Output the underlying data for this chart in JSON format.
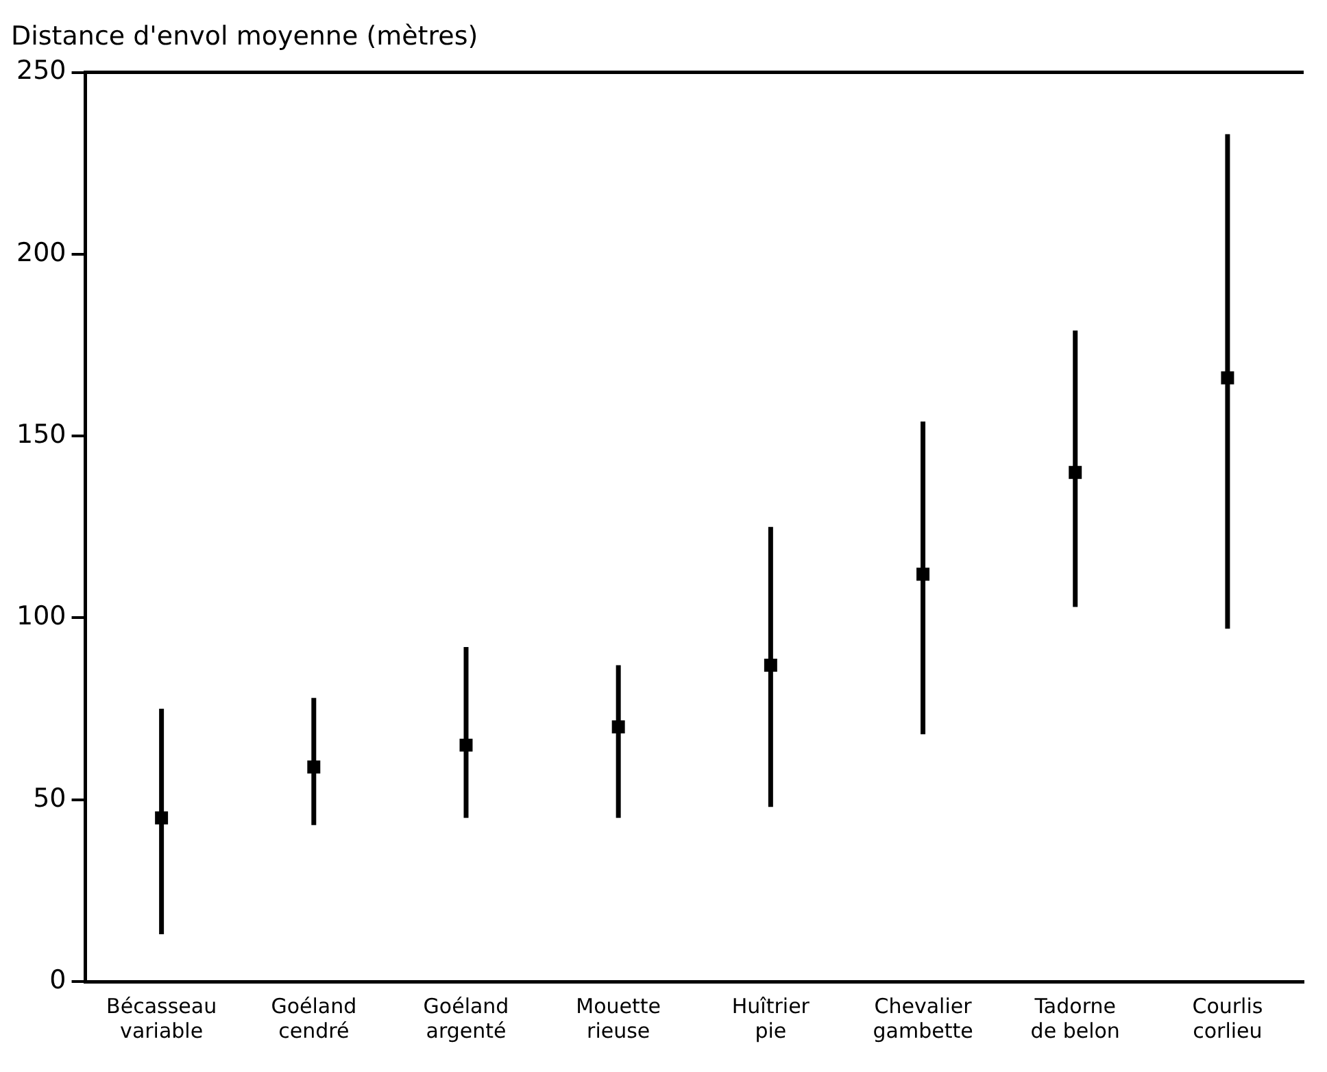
{
  "chart_data": {
    "type": "scatter",
    "ylabel": "Distance d'envol moyenne (mètres)",
    "categories": [
      "Bécasseau variable",
      "Goéland cendré",
      "Goéland argenté",
      "Mouette rieuse",
      "Huîtrier pie",
      "Chevalier gambette",
      "Tadorne de belon",
      "Courlis corlieu"
    ],
    "series": [
      {
        "color": "#000000",
        "values": [
          45,
          59,
          65,
          70,
          87,
          112,
          140,
          166
        ],
        "errors": [
          [
            13,
            75
          ],
          [
            43,
            78
          ],
          [
            45,
            92
          ],
          [
            45,
            87
          ],
          [
            48,
            125
          ],
          [
            68,
            154
          ],
          [
            103,
            179
          ],
          [
            97,
            233
          ]
        ]
      }
    ],
    "ylim": [
      0,
      250
    ],
    "yticks": [
      0,
      50,
      100,
      150,
      200,
      250
    ],
    "grid": false,
    "legend": false,
    "marker": "square"
  }
}
